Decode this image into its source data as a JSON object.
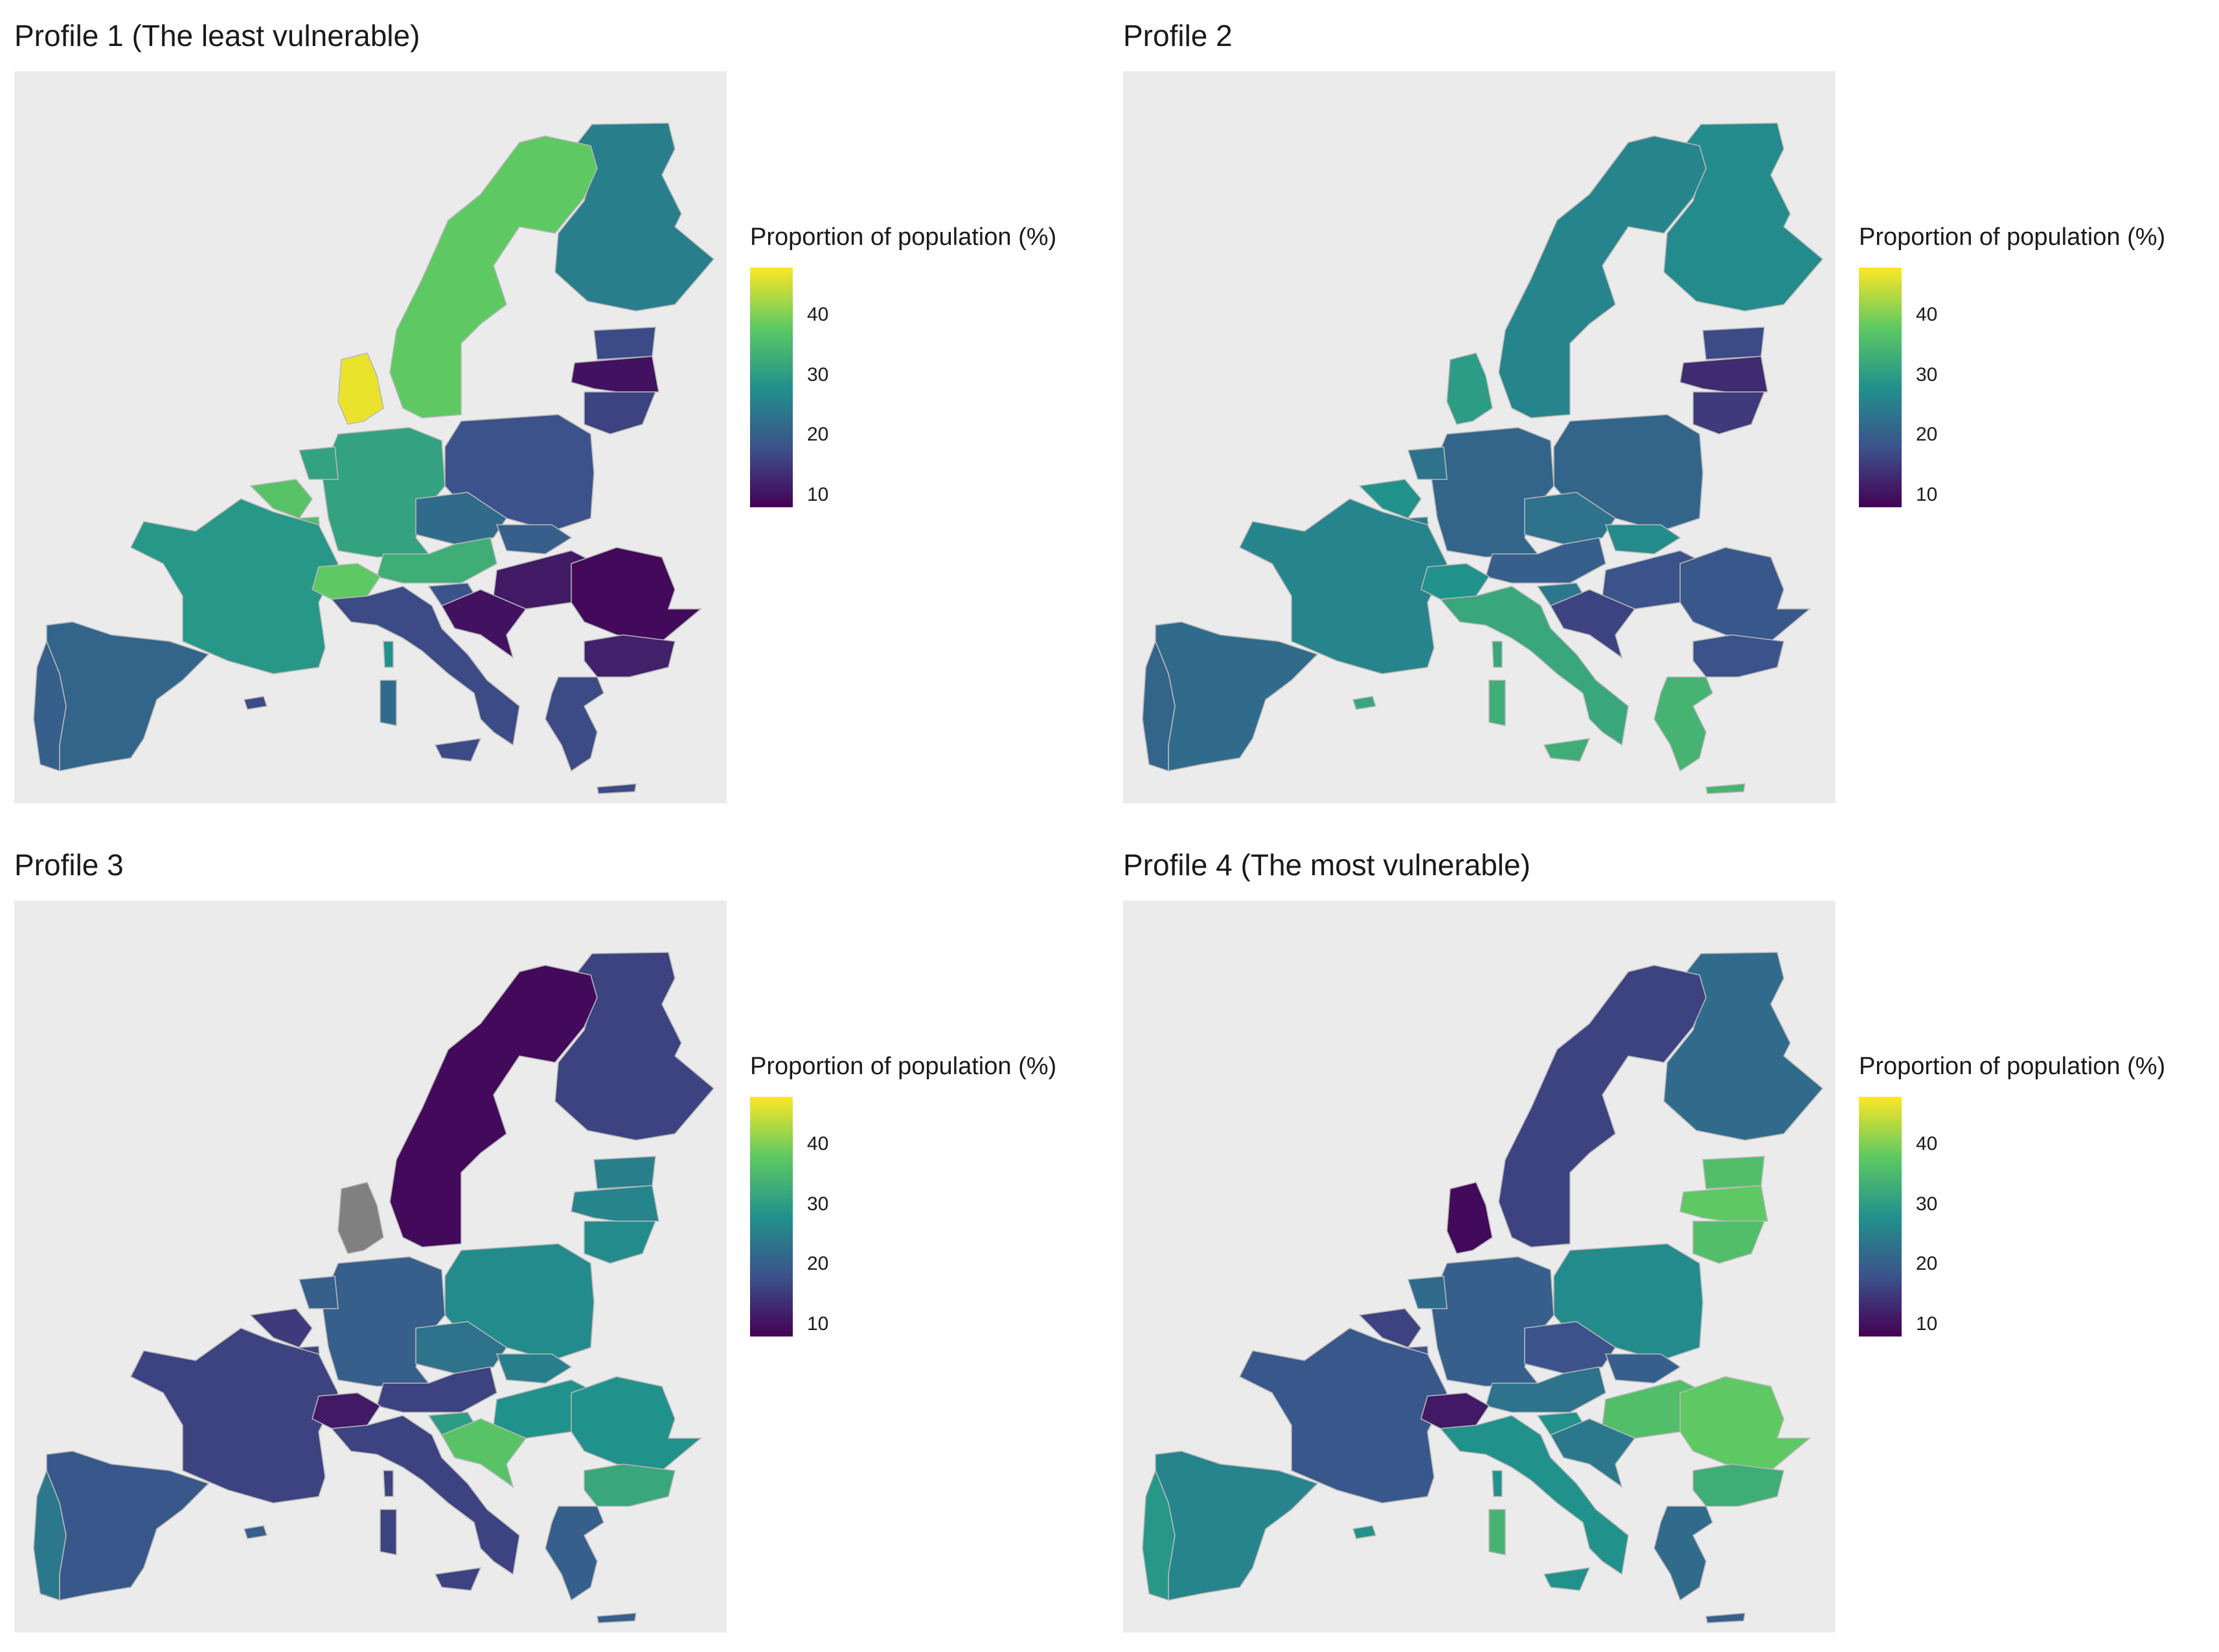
{
  "figure": {
    "legend_title": "Proportion of population (%)",
    "legend_ticks": [
      "10",
      "20",
      "30",
      "40"
    ],
    "colorscale": {
      "low": "#440154",
      "mid_low": "#3b528b",
      "mid": "#21918c",
      "mid_high": "#5ec962",
      "high": "#fde725"
    },
    "missing_color": "#808080",
    "background": "#ebebeb"
  },
  "panels": [
    {
      "title": "Profile 1 (The least vulnerable)",
      "values": {
        "Finland": 27,
        "Sweden": 40,
        "Denmark": 47,
        "Estonia": 19,
        "Latvia": 12,
        "Lithuania": 18,
        "Poland": 20,
        "Germany": 33,
        "Netherlands": 33,
        "Belgium": 39,
        "Luxembourg": 38,
        "France": 31,
        "Czechia": 24,
        "Slovakia": 22,
        "Austria": 35,
        "Hungary": 13,
        "Slovenia": 20,
        "Croatia": 12,
        "Romania": 11,
        "Bulgaria": 14,
        "Switzerland": 40,
        "Italy": 19,
        "Spain": 23,
        "Portugal": 22,
        "Greece": 19,
        "Ireland": null,
        "Corsica": 30,
        "Sardinia": 24,
        "Sicily": 19,
        "Crete": 19,
        "Cyprus": 19
      }
    },
    {
      "title": "Profile 2",
      "values": {
        "Finland": 29,
        "Sweden": 28,
        "Denmark": 32,
        "Estonia": 19,
        "Latvia": 15,
        "Lithuania": 17,
        "Poland": 23,
        "Germany": 23,
        "Netherlands": 25,
        "Belgium": 30,
        "Luxembourg": 27,
        "France": 28,
        "Czechia": 25,
        "Slovakia": 29,
        "Austria": 22,
        "Hungary": 20,
        "Slovenia": 26,
        "Croatia": 18,
        "Romania": 21,
        "Bulgaria": 20,
        "Switzerland": 30,
        "Italy": 34,
        "Spain": 24,
        "Portugal": 23,
        "Greece": 36,
        "Ireland": null,
        "Corsica": 34,
        "Sardinia": 35,
        "Sicily": 35,
        "Crete": 36,
        "Cyprus": 34
      }
    },
    {
      "title": "Profile 3",
      "values": {
        "Finland": 18,
        "Sweden": 11,
        "Denmark": null,
        "Estonia": 27,
        "Latvia": 28,
        "Lithuania": 29,
        "Poland": 29,
        "Germany": 22,
        "Netherlands": 22,
        "Belgium": 17,
        "Luxembourg": 18,
        "France": 18,
        "Czechia": 25,
        "Slovakia": 27,
        "Austria": 18,
        "Hungary": 30,
        "Slovenia": 32,
        "Croatia": 39,
        "Romania": 30,
        "Bulgaria": 34,
        "Switzerland": 13,
        "Italy": 18,
        "Spain": 21,
        "Portugal": 26,
        "Greece": 22,
        "Ireland": null,
        "Corsica": 18,
        "Sardinia": 18,
        "Sicily": 18,
        "Crete": 22,
        "Cyprus": 22
      }
    },
    {
      "title": "Profile 4 (The most vulnerable)",
      "values": {
        "Finland": 24,
        "Sweden": 18,
        "Denmark": 11,
        "Estonia": 38,
        "Latvia": 40,
        "Lithuania": 38,
        "Poland": 29,
        "Germany": 22,
        "Netherlands": 24,
        "Belgium": 18,
        "Luxembourg": 20,
        "France": 21,
        "Czechia": 20,
        "Slovakia": 22,
        "Austria": 25,
        "Hungary": 38,
        "Slovenia": 30,
        "Croatia": 26,
        "Romania": 40,
        "Bulgaria": 35,
        "Switzerland": 13,
        "Italy": 30,
        "Spain": 28,
        "Portugal": 31,
        "Greece": 24,
        "Ireland": null,
        "Corsica": 30,
        "Sardinia": 36,
        "Sicily": 30,
        "Crete": 22,
        "Cyprus": 30
      }
    }
  ]
}
